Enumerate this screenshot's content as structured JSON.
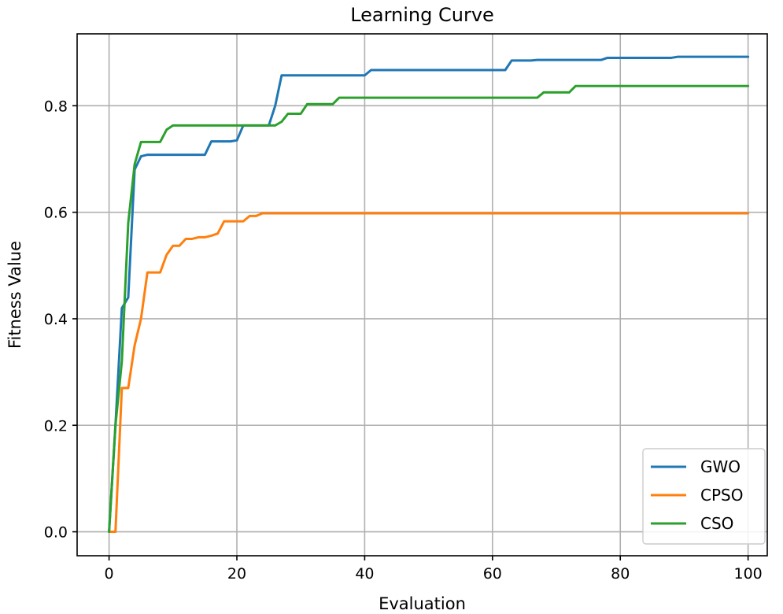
{
  "chart_data": {
    "type": "line",
    "title": "Learning Curve",
    "xlabel": "Evaluation",
    "ylabel": "Fitness Value",
    "xlim": [
      -5,
      103
    ],
    "ylim": [
      -0.045,
      0.935
    ],
    "xticks": [
      0,
      20,
      40,
      60,
      80,
      100
    ],
    "xtick_labels": [
      "0",
      "20",
      "40",
      "60",
      "80",
      "100"
    ],
    "yticks": [
      0.0,
      0.2,
      0.4,
      0.6,
      0.8
    ],
    "ytick_labels": [
      "0.0",
      "0.2",
      "0.4",
      "0.6",
      "0.8"
    ],
    "grid": true,
    "legend_position": "lower-right",
    "series": [
      {
        "name": "GWO",
        "color": "#1f77b4",
        "x": [
          0,
          1,
          2,
          3,
          4,
          5,
          6,
          7,
          8,
          9,
          10,
          11,
          12,
          13,
          14,
          15,
          16,
          17,
          18,
          19,
          20,
          21,
          22,
          23,
          24,
          25,
          26,
          27,
          28,
          29,
          30,
          31,
          32,
          33,
          34,
          35,
          36,
          37,
          38,
          39,
          40,
          41,
          42,
          43,
          44,
          45,
          46,
          47,
          48,
          49,
          50,
          51,
          52,
          53,
          54,
          55,
          56,
          57,
          58,
          59,
          60,
          61,
          62,
          63,
          64,
          65,
          66,
          67,
          68,
          69,
          70,
          71,
          72,
          73,
          74,
          75,
          76,
          77,
          78,
          79,
          80,
          81,
          82,
          83,
          84,
          85,
          86,
          87,
          88,
          89,
          90,
          91,
          92,
          93,
          94,
          95,
          96,
          97,
          98,
          99,
          100
        ],
        "values": [
          0.0,
          0.2,
          0.42,
          0.44,
          0.68,
          0.705,
          0.708,
          0.708,
          0.708,
          0.708,
          0.708,
          0.708,
          0.708,
          0.708,
          0.708,
          0.708,
          0.733,
          0.733,
          0.733,
          0.733,
          0.735,
          0.763,
          0.763,
          0.763,
          0.763,
          0.763,
          0.8,
          0.857,
          0.857,
          0.857,
          0.857,
          0.857,
          0.857,
          0.857,
          0.857,
          0.857,
          0.857,
          0.857,
          0.857,
          0.857,
          0.857,
          0.867,
          0.867,
          0.867,
          0.867,
          0.867,
          0.867,
          0.867,
          0.867,
          0.867,
          0.867,
          0.867,
          0.867,
          0.867,
          0.867,
          0.867,
          0.867,
          0.867,
          0.867,
          0.867,
          0.867,
          0.867,
          0.867,
          0.885,
          0.885,
          0.885,
          0.885,
          0.886,
          0.886,
          0.886,
          0.886,
          0.886,
          0.886,
          0.886,
          0.886,
          0.886,
          0.886,
          0.886,
          0.89,
          0.89,
          0.89,
          0.89,
          0.89,
          0.89,
          0.89,
          0.89,
          0.89,
          0.89,
          0.89,
          0.892,
          0.892,
          0.892,
          0.892,
          0.892,
          0.892,
          0.892,
          0.892,
          0.892,
          0.892,
          0.892,
          0.892
        ]
      },
      {
        "name": "CPSO",
        "color": "#ff7f0e",
        "x": [
          0,
          1,
          2,
          3,
          4,
          5,
          6,
          7,
          8,
          9,
          10,
          11,
          12,
          13,
          14,
          15,
          16,
          17,
          18,
          19,
          20,
          21,
          22,
          23,
          24,
          25,
          26,
          27,
          28,
          29,
          30,
          31,
          32,
          33,
          34,
          35,
          36,
          37,
          38,
          39,
          40,
          41,
          42,
          43,
          44,
          45,
          46,
          47,
          48,
          49,
          50,
          51,
          52,
          53,
          54,
          55,
          56,
          57,
          58,
          59,
          60,
          61,
          62,
          63,
          64,
          65,
          66,
          67,
          68,
          69,
          70,
          71,
          72,
          73,
          74,
          75,
          76,
          77,
          78,
          79,
          80,
          81,
          82,
          83,
          84,
          85,
          86,
          87,
          88,
          89,
          90,
          91,
          92,
          93,
          94,
          95,
          96,
          97,
          98,
          99,
          100
        ],
        "values": [
          0.0,
          0.0,
          0.27,
          0.27,
          0.35,
          0.4,
          0.487,
          0.487,
          0.487,
          0.52,
          0.537,
          0.537,
          0.55,
          0.55,
          0.553,
          0.553,
          0.556,
          0.56,
          0.583,
          0.583,
          0.583,
          0.583,
          0.593,
          0.593,
          0.598,
          0.598,
          0.598,
          0.598,
          0.598,
          0.598,
          0.598,
          0.598,
          0.598,
          0.598,
          0.598,
          0.598,
          0.598,
          0.598,
          0.598,
          0.598,
          0.598,
          0.598,
          0.598,
          0.598,
          0.598,
          0.598,
          0.598,
          0.598,
          0.598,
          0.598,
          0.598,
          0.598,
          0.598,
          0.598,
          0.598,
          0.598,
          0.598,
          0.598,
          0.598,
          0.598,
          0.598,
          0.598,
          0.598,
          0.598,
          0.598,
          0.598,
          0.598,
          0.598,
          0.598,
          0.598,
          0.598,
          0.598,
          0.598,
          0.598,
          0.598,
          0.598,
          0.598,
          0.598,
          0.598,
          0.598,
          0.598,
          0.598,
          0.598,
          0.598,
          0.598,
          0.598,
          0.598,
          0.598,
          0.598,
          0.598,
          0.598,
          0.598,
          0.598,
          0.598,
          0.598,
          0.598,
          0.598,
          0.598,
          0.598,
          0.598,
          0.598
        ]
      },
      {
        "name": "CSO",
        "color": "#2ca02c",
        "x": [
          0,
          1,
          2,
          3,
          4,
          5,
          6,
          7,
          8,
          9,
          10,
          11,
          12,
          13,
          14,
          15,
          16,
          17,
          18,
          19,
          20,
          21,
          22,
          23,
          24,
          25,
          26,
          27,
          28,
          29,
          30,
          31,
          32,
          33,
          34,
          35,
          36,
          37,
          38,
          39,
          40,
          41,
          42,
          43,
          44,
          45,
          46,
          47,
          48,
          49,
          50,
          51,
          52,
          53,
          54,
          55,
          56,
          57,
          58,
          59,
          60,
          61,
          62,
          63,
          64,
          65,
          66,
          67,
          68,
          69,
          70,
          71,
          72,
          73,
          74,
          75,
          76,
          77,
          78,
          79,
          80,
          81,
          82,
          83,
          84,
          85,
          86,
          87,
          88,
          89,
          90,
          91,
          92,
          93,
          94,
          95,
          96,
          97,
          98,
          99,
          100
        ],
        "values": [
          0.0,
          0.2,
          0.32,
          0.58,
          0.69,
          0.732,
          0.732,
          0.732,
          0.732,
          0.755,
          0.763,
          0.763,
          0.763,
          0.763,
          0.763,
          0.763,
          0.763,
          0.763,
          0.763,
          0.763,
          0.763,
          0.763,
          0.763,
          0.763,
          0.763,
          0.763,
          0.763,
          0.77,
          0.785,
          0.785,
          0.785,
          0.803,
          0.803,
          0.803,
          0.803,
          0.803,
          0.815,
          0.815,
          0.815,
          0.815,
          0.815,
          0.815,
          0.815,
          0.815,
          0.815,
          0.815,
          0.815,
          0.815,
          0.815,
          0.815,
          0.815,
          0.815,
          0.815,
          0.815,
          0.815,
          0.815,
          0.815,
          0.815,
          0.815,
          0.815,
          0.815,
          0.815,
          0.815,
          0.815,
          0.815,
          0.815,
          0.815,
          0.815,
          0.825,
          0.825,
          0.825,
          0.825,
          0.825,
          0.837,
          0.837,
          0.837,
          0.837,
          0.837,
          0.837,
          0.837,
          0.837,
          0.837,
          0.837,
          0.837,
          0.837,
          0.837,
          0.837,
          0.837,
          0.837,
          0.837,
          0.837,
          0.837,
          0.837,
          0.837,
          0.837,
          0.837,
          0.837,
          0.837,
          0.837,
          0.837,
          0.837
        ]
      }
    ]
  }
}
